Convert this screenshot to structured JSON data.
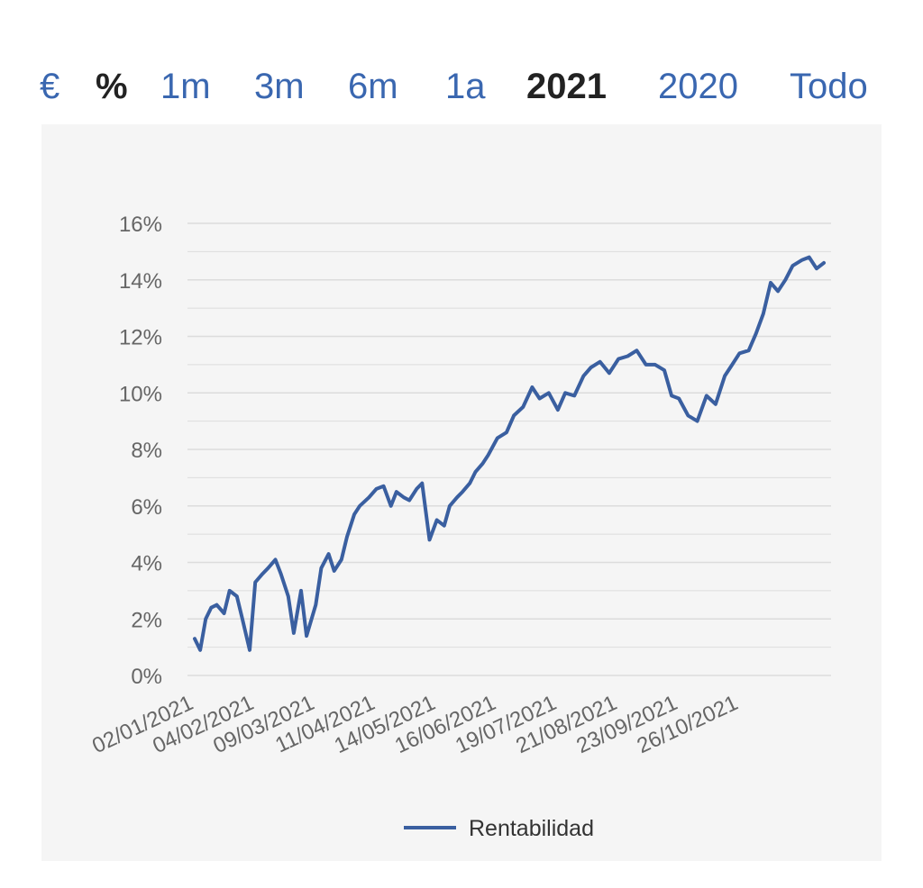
{
  "periods": [
    {
      "label": "€",
      "active": false
    },
    {
      "label": "%",
      "active": true
    },
    {
      "label": "1m",
      "active": false
    },
    {
      "label": "3m",
      "active": false
    },
    {
      "label": "6m",
      "active": false
    },
    {
      "label": "1a",
      "active": false
    },
    {
      "label": "2021",
      "active": true
    },
    {
      "label": "2020",
      "active": false
    },
    {
      "label": "Todo",
      "active": false
    }
  ],
  "colors": {
    "accent": "#3a67b0",
    "active_text": "#222222",
    "line": "#3a5fa0",
    "grid": "#dcdcdc",
    "panel": "#f5f5f5"
  },
  "chart_data": {
    "type": "line",
    "title": "",
    "xlabel": "",
    "ylabel": "",
    "y_unit": "%",
    "ylim": [
      0,
      16
    ],
    "y_ticks": [
      0,
      2,
      4,
      6,
      8,
      10,
      12,
      14,
      16
    ],
    "y_tick_labels": [
      "0%",
      "2%",
      "4%",
      "6%",
      "8%",
      "10%",
      "12%",
      "14%",
      "16%"
    ],
    "grid": true,
    "legend_position": "bottom-center",
    "x_tick_labels": [
      "02/01/2021",
      "04/02/2021",
      "09/03/2021",
      "11/04/2021",
      "14/05/2021",
      "16/06/2021",
      "19/07/2021",
      "21/08/2021",
      "23/09/2021",
      "26/10/2021"
    ],
    "series": [
      {
        "name": "Rentabilidad",
        "x": [
          "02/01/2021",
          "05/01/2021",
          "08/01/2021",
          "11/01/2021",
          "14/01/2021",
          "18/01/2021",
          "21/01/2021",
          "25/01/2021",
          "28/01/2021",
          "01/02/2021",
          "04/02/2021",
          "08/02/2021",
          "11/02/2021",
          "15/02/2021",
          "18/02/2021",
          "22/02/2021",
          "25/02/2021",
          "01/03/2021",
          "04/03/2021",
          "09/03/2021",
          "12/03/2021",
          "16/03/2021",
          "19/03/2021",
          "23/03/2021",
          "26/03/2021",
          "30/03/2021",
          "02/04/2021",
          "07/04/2021",
          "11/04/2021",
          "15/04/2021",
          "19/04/2021",
          "22/04/2021",
          "26/04/2021",
          "29/04/2021",
          "03/05/2021",
          "06/05/2021",
          "10/05/2021",
          "14/05/2021",
          "18/05/2021",
          "21/05/2021",
          "25/05/2021",
          "28/05/2021",
          "01/06/2021",
          "04/06/2021",
          "08/06/2021",
          "11/06/2021",
          "16/06/2021",
          "21/06/2021",
          "25/06/2021",
          "30/06/2021",
          "05/07/2021",
          "09/07/2021",
          "14/07/2021",
          "19/07/2021",
          "23/07/2021",
          "28/07/2021",
          "02/08/2021",
          "06/08/2021",
          "11/08/2021",
          "16/08/2021",
          "21/08/2021",
          "26/08/2021",
          "31/08/2021",
          "05/09/2021",
          "10/09/2021",
          "15/09/2021",
          "19/09/2021",
          "23/09/2021",
          "28/09/2021",
          "03/10/2021",
          "08/10/2021",
          "13/10/2021",
          "18/10/2021",
          "22/10/2021",
          "26/10/2021",
          "31/10/2021",
          "04/11/2021",
          "08/11/2021",
          "12/11/2021",
          "16/11/2021",
          "20/11/2021",
          "24/11/2021",
          "29/11/2021",
          "03/12/2021",
          "07/12/2021",
          "11/12/2021"
        ],
        "values": [
          1.3,
          0.9,
          2.0,
          2.4,
          2.5,
          2.2,
          3.0,
          2.8,
          2.0,
          0.9,
          3.3,
          3.6,
          3.8,
          4.1,
          3.6,
          2.8,
          1.5,
          3.0,
          1.4,
          2.5,
          3.8,
          4.3,
          3.7,
          4.1,
          4.9,
          5.7,
          6.0,
          6.3,
          6.6,
          6.7,
          6.0,
          6.5,
          6.3,
          6.2,
          6.6,
          6.8,
          4.8,
          5.5,
          5.3,
          6.0,
          6.3,
          6.5,
          6.8,
          7.2,
          7.5,
          7.8,
          8.4,
          8.6,
          9.2,
          9.5,
          10.2,
          9.8,
          10.0,
          9.4,
          10.0,
          9.9,
          10.6,
          10.9,
          11.1,
          10.7,
          11.2,
          11.3,
          11.5,
          11.0,
          11.0,
          10.8,
          9.9,
          9.8,
          9.2,
          9.0,
          9.9,
          9.6,
          10.6,
          11.0,
          11.4,
          11.5,
          12.1,
          12.8,
          13.9,
          13.6,
          14.0,
          14.5,
          14.7,
          14.8,
          14.4,
          14.6
        ]
      }
    ]
  }
}
